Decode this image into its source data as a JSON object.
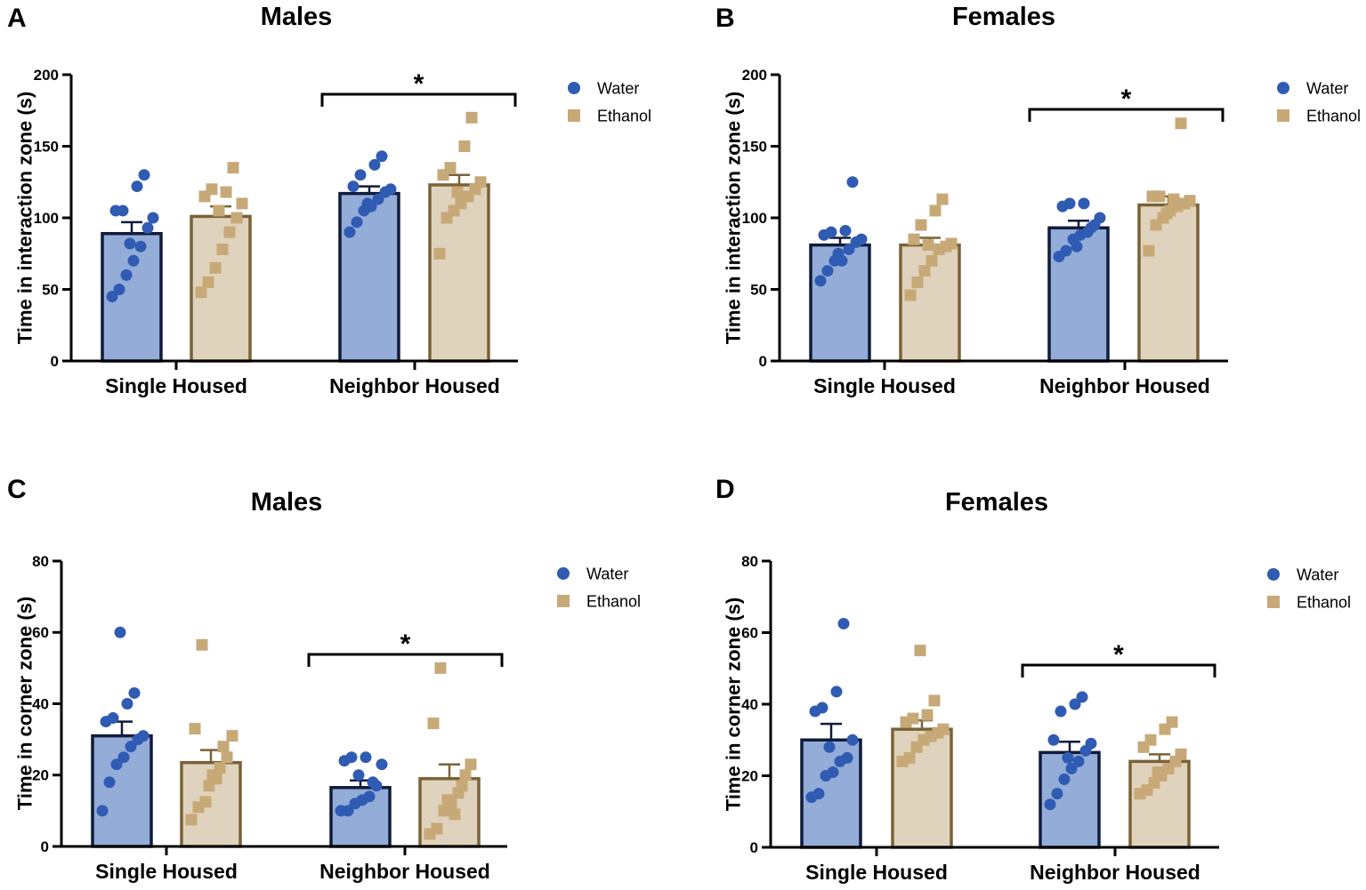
{
  "colors": {
    "water_bar": "#93acd8",
    "water_edge": "#111b3a",
    "water_point": "#2f5bb3",
    "ethanol_bar": "#e0d3bd",
    "ethanol_edge": "#7a6237",
    "ethanol_point": "#c7a978",
    "axis": "#000000"
  },
  "chart_data": [
    {
      "panel": "A",
      "type": "bar",
      "title": "Males",
      "ylabel": "Time in interaction zone (s)",
      "ylim": [
        0,
        200
      ],
      "yticks": [
        0,
        50,
        100,
        150,
        200
      ],
      "categories": [
        "Single Housed",
        "Neighbor Housed"
      ],
      "legend": [
        "Water",
        "Ethanol"
      ],
      "significance": "*",
      "series": [
        {
          "name": "Water",
          "values": [
            89,
            117
          ],
          "sem": [
            8,
            5
          ],
          "points": [
            [
              45,
              50,
              60,
              70,
              80,
              93,
              100,
              105,
              105,
              122,
              130,
              82
            ],
            [
              90,
              97,
              105,
              108,
              113,
              118,
              120,
              122,
              130,
              137,
              143,
              110
            ]
          ]
        },
        {
          "name": "Ethanol",
          "values": [
            101,
            123
          ],
          "sem": [
            7,
            7
          ],
          "points": [
            [
              48,
              55,
              65,
              78,
              90,
              100,
              110,
              115,
              120,
              118,
              135,
              105
            ],
            [
              75,
              100,
              105,
              110,
              115,
              120,
              125,
              130,
              135,
              150,
              170,
              118
            ]
          ]
        }
      ]
    },
    {
      "panel": "B",
      "type": "bar",
      "title": "Females",
      "ylabel": "Time in interaction zone (s)",
      "ylim": [
        0,
        200
      ],
      "yticks": [
        0,
        50,
        100,
        150,
        200
      ],
      "categories": [
        "Single Housed",
        "Neighbor Housed"
      ],
      "legend": [
        "Water",
        "Ethanol"
      ],
      "significance": "*",
      "series": [
        {
          "name": "Water",
          "values": [
            81,
            93
          ],
          "sem": [
            5,
            5
          ],
          "points": [
            [
              56,
              63,
              70,
              70,
              78,
              83,
              85,
              88,
              90,
              91,
              125,
              75
            ],
            [
              73,
              77,
              85,
              88,
              90,
              95,
              100,
              108,
              110,
              110,
              93,
              80
            ]
          ]
        },
        {
          "name": "Ethanol",
          "values": [
            81,
            109
          ],
          "sem": [
            5,
            6
          ],
          "points": [
            [
              46,
              55,
              63,
              70,
              78,
              80,
              82,
              85,
              95,
              105,
              113,
              81
            ],
            [
              77,
              95,
              100,
              105,
              108,
              110,
              112,
              115,
              115,
              113,
              166,
              103
            ]
          ]
        }
      ]
    },
    {
      "panel": "C",
      "type": "bar",
      "title": "Males",
      "ylabel": "Time in corner zone (s)",
      "ylim": [
        0,
        80
      ],
      "yticks": [
        0,
        20,
        40,
        60,
        80
      ],
      "categories": [
        "Single Housed",
        "Neighbor Housed"
      ],
      "legend": [
        "Water",
        "Ethanol"
      ],
      "significance": "*",
      "series": [
        {
          "name": "Water",
          "values": [
            31,
            16.5
          ],
          "sem": [
            4,
            2
          ],
          "points": [
            [
              10,
              18,
              23,
              25,
              28,
              30,
              31,
              35,
              36,
              40,
              43,
              60
            ],
            [
              10,
              10,
              12,
              13,
              14,
              17,
              23,
              24,
              25,
              25,
              18,
              20
            ]
          ]
        },
        {
          "name": "Ethanol",
          "values": [
            23.5,
            19
          ],
          "sem": [
            3.5,
            4
          ],
          "points": [
            [
              7.5,
              11,
              12.5,
              20,
              22,
              25,
              31,
              33,
              56.5,
              19,
              28,
              17
            ],
            [
              3.5,
              5,
              10,
              12,
              15,
              20,
              23,
              34.5,
              50,
              9,
              17,
              13
            ]
          ]
        }
      ]
    },
    {
      "panel": "D",
      "type": "bar",
      "title": "Females",
      "ylabel": "Time in corner zone (s)",
      "ylim": [
        0,
        80
      ],
      "yticks": [
        0,
        20,
        40,
        60,
        80
      ],
      "categories": [
        "Single Housed",
        "Neighbor Housed"
      ],
      "legend": [
        "Water",
        "Ethanol"
      ],
      "significance": "*",
      "series": [
        {
          "name": "Water",
          "values": [
            30,
            26.5
          ],
          "sem": [
            4.5,
            3
          ],
          "points": [
            [
              14,
              15,
              20,
              21,
              24,
              25,
              30,
              38,
              39,
              43.5,
              62.5,
              28
            ],
            [
              12,
              15,
              19,
              22,
              24,
              27,
              29,
              30,
              38,
              40,
              42,
              25
            ]
          ]
        },
        {
          "name": "Ethanol",
          "values": [
            33,
            24
          ],
          "sem": [
            2.5,
            2
          ],
          "points": [
            [
              24,
              25,
              28,
              30,
              31,
              32,
              33,
              35,
              36,
              37,
              41,
              55
            ],
            [
              15,
              16,
              18,
              20,
              22,
              24,
              26,
              28,
              30,
              33,
              35,
              21
            ]
          ]
        }
      ]
    }
  ]
}
